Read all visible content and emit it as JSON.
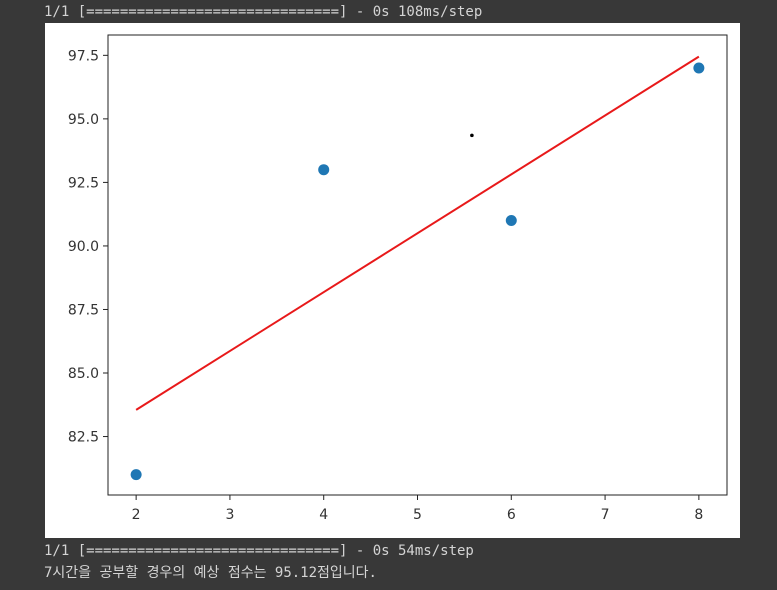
{
  "console": {
    "line_top": "1/1 [==============================] - 0s 108ms/step",
    "line_mid": "1/1 [==============================] - 0s 54ms/step",
    "line_result": "7시간을 공부할 경우의 예상 점수는 95.12점입니다."
  },
  "colors": {
    "background": "#383838",
    "text": "#d4d4d4",
    "scatter": "#1f77b4",
    "fit_line": "#e8191a",
    "marker": "#000000"
  },
  "chart_data": {
    "type": "scatter",
    "x": [
      2,
      4,
      6,
      8
    ],
    "y": [
      81,
      93,
      91,
      97
    ],
    "fit_line": {
      "x": [
        2,
        8
      ],
      "y": [
        83.55,
        97.45
      ]
    },
    "marker_point": {
      "x": 5.58,
      "y": 94.35
    },
    "xlim": [
      1.7,
      8.3
    ],
    "ylim": [
      80.2,
      98.3
    ],
    "xticks": [
      "2",
      "3",
      "4",
      "5",
      "6",
      "7",
      "8"
    ],
    "xtick_values": [
      2,
      3,
      4,
      5,
      6,
      7,
      8
    ],
    "yticks": [
      "82.5",
      "85.0",
      "87.5",
      "90.0",
      "92.5",
      "95.0",
      "97.5"
    ],
    "ytick_values": [
      82.5,
      85.0,
      87.5,
      90.0,
      92.5,
      95.0,
      97.5
    ],
    "grid": false
  }
}
